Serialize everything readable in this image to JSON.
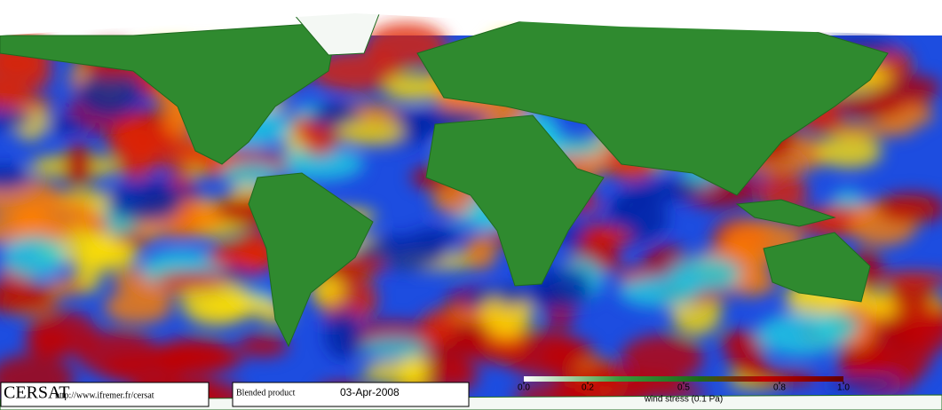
{
  "logo": "CERSAT",
  "url": "http://www.ifremer.fr/cersat",
  "product": "Blended product",
  "date": "03-Apr-2008",
  "colorbar": {
    "label": "wind stress (0.1 Pa)",
    "ticks": [
      {
        "value": 0,
        "label": "0.0"
      },
      {
        "value": 0.2,
        "label": "0.2"
      },
      {
        "value": 0.5,
        "label": "0.5"
      },
      {
        "value": 0.8,
        "label": "0.8"
      },
      {
        "value": 1,
        "label": "1.0"
      }
    ]
  }
}
